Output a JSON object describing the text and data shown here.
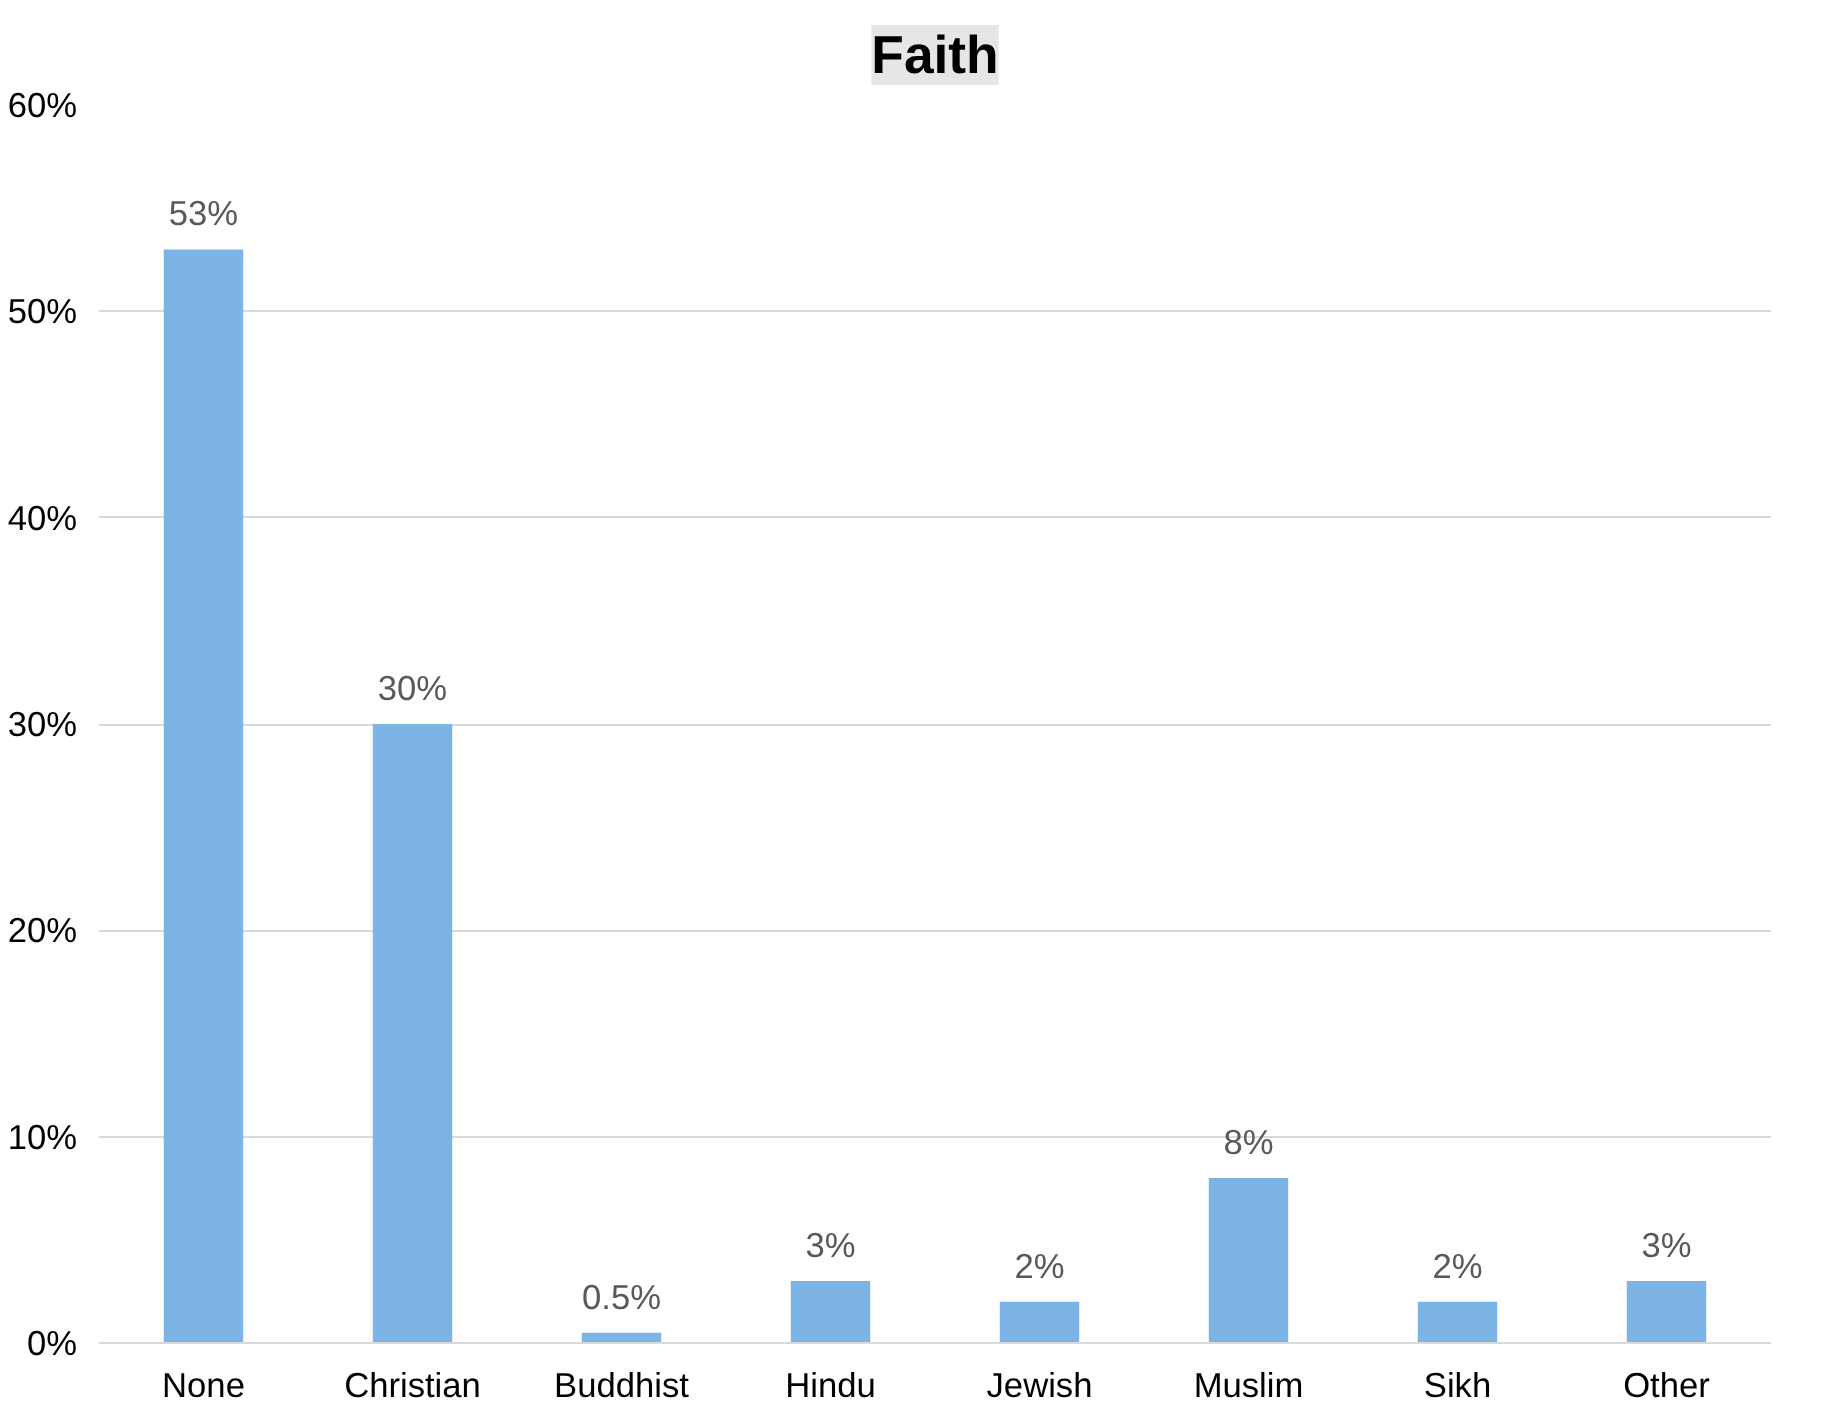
{
  "chart_data": {
    "type": "bar",
    "title": "Faith",
    "categories": [
      "None",
      "Christian",
      "Buddhist",
      "Hindu",
      "Jewish",
      "Muslim",
      "Sikh",
      "Other"
    ],
    "values": [
      53,
      30,
      0.5,
      3,
      2,
      8,
      2,
      3
    ],
    "value_labels": [
      "53%",
      "30%",
      "0.5%",
      "3%",
      "2%",
      "8%",
      "2%",
      "3%"
    ],
    "color": "#7cb4e5",
    "ylim": [
      0,
      60
    ],
    "yticks": [
      {
        "value": 0,
        "label": "0%"
      },
      {
        "value": 10,
        "label": "10%"
      },
      {
        "value": 20,
        "label": "20%"
      },
      {
        "value": 30,
        "label": "30%"
      },
      {
        "value": 40,
        "label": "40%"
      },
      {
        "value": 50,
        "label": "50%"
      },
      {
        "value": 60,
        "label": "60%"
      }
    ],
    "grid": "y"
  }
}
